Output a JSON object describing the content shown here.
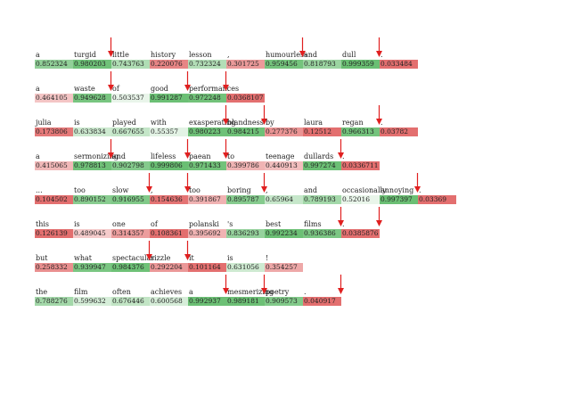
{
  "rows": [
    {
      "tokens": [
        {
          "word": "a",
          "score": "0.852324",
          "val": 0.852324,
          "pol": "pos",
          "arrow": false
        },
        {
          "word": "turgid",
          "score": "0.980203",
          "val": 0.980203,
          "pol": "pos",
          "arrow": true
        },
        {
          "word": "little",
          "score": "0.743763",
          "val": 0.743763,
          "pol": "pos",
          "arrow": false
        },
        {
          "word": "history",
          "score": "0.220076",
          "val": 0.220076,
          "pol": "neg",
          "arrow": false
        },
        {
          "word": "lesson",
          "score": "0.732324",
          "val": 0.732324,
          "pol": "pos",
          "arrow": false
        },
        {
          "word": ",",
          "score": "0.301725",
          "val": 0.301725,
          "pol": "neg",
          "arrow": false
        },
        {
          "word": "humourless",
          "score": "0.959456",
          "val": 0.959456,
          "pol": "pos",
          "arrow": true
        },
        {
          "word": "and",
          "score": "0.818793",
          "val": 0.818793,
          "pol": "pos",
          "arrow": false
        },
        {
          "word": "dull",
          "score": "0.999359",
          "val": 0.999359,
          "pol": "pos",
          "arrow": true
        },
        {
          "word": ".",
          "score": "0.033484",
          "val": 0.966516,
          "pol": "neg",
          "arrow": false
        }
      ]
    },
    {
      "tokens": [
        {
          "word": "a",
          "score": "0.464105",
          "val": 0.464105,
          "pol": "neg",
          "arrow": false
        },
        {
          "word": "waste",
          "score": "0.949628",
          "val": 0.949628,
          "pol": "pos",
          "arrow": true
        },
        {
          "word": "of",
          "score": "0.503537",
          "val": 0.503537,
          "pol": "pos",
          "arrow": false
        },
        {
          "word": "good",
          "score": "0.991287",
          "val": 0.991287,
          "pol": "pos",
          "arrow": true
        },
        {
          "word": "performances",
          "score": "0.972248",
          "val": 0.972248,
          "pol": "pos",
          "arrow": true
        },
        {
          "word": ".",
          "score": "0.0368107",
          "val": 0.9631893,
          "pol": "neg",
          "arrow": false
        }
      ]
    },
    {
      "tokens": [
        {
          "word": "julia",
          "score": "0.173806",
          "val": 0.173806,
          "pol": "neg",
          "arrow": false
        },
        {
          "word": "is",
          "score": "0.633834",
          "val": 0.633834,
          "pol": "pos",
          "arrow": false
        },
        {
          "word": "played",
          "score": "0.667655",
          "val": 0.667655,
          "pol": "pos",
          "arrow": false
        },
        {
          "word": "with",
          "score": "0.55357",
          "val": 0.55357,
          "pol": "pos",
          "arrow": false
        },
        {
          "word": "exasperating",
          "score": "0.980223",
          "val": 0.980223,
          "pol": "pos",
          "arrow": true
        },
        {
          "word": "blandness",
          "score": "0.984215",
          "val": 0.984215,
          "pol": "pos",
          "arrow": true
        },
        {
          "word": "by",
          "score": "0.277376",
          "val": 0.277376,
          "pol": "neg",
          "arrow": false
        },
        {
          "word": "laura",
          "score": "0.12512",
          "val": 0.12512,
          "pol": "neg",
          "arrow": false
        },
        {
          "word": "regan",
          "score": "0.966313",
          "val": 0.966313,
          "pol": "pos",
          "arrow": true
        },
        {
          "word": ".",
          "score": "0.03782",
          "val": 0.96218,
          "pol": "neg",
          "arrow": false
        }
      ]
    },
    {
      "tokens": [
        {
          "word": "a",
          "score": "0.415065",
          "val": 0.415065,
          "pol": "neg",
          "arrow": false
        },
        {
          "word": "sermonizing",
          "score": "0.978813",
          "val": 0.978813,
          "pol": "pos",
          "arrow": true
        },
        {
          "word": "and",
          "score": "0.902798",
          "val": 0.902798,
          "pol": "pos",
          "arrow": false
        },
        {
          "word": "lifeless",
          "score": "0.999806",
          "val": 0.999806,
          "pol": "pos",
          "arrow": true
        },
        {
          "word": "paean",
          "score": "0.971433",
          "val": 0.971433,
          "pol": "pos",
          "arrow": true
        },
        {
          "word": "to",
          "score": "0.399786",
          "val": 0.399786,
          "pol": "neg",
          "arrow": false
        },
        {
          "word": "teenage",
          "score": "0.440913",
          "val": 0.440913,
          "pol": "neg",
          "arrow": false
        },
        {
          "word": "dullards",
          "score": "0.997274",
          "val": 0.997274,
          "pol": "pos",
          "arrow": true
        },
        {
          "word": ".",
          "score": "0.0336711",
          "val": 0.9663289,
          "pol": "neg",
          "arrow": false
        }
      ]
    },
    {
      "tokens": [
        {
          "word": "...",
          "score": "0.104502",
          "val": 0.104502,
          "pol": "neg",
          "arrow": false
        },
        {
          "word": "too",
          "score": "0.890152",
          "val": 0.890152,
          "pol": "pos",
          "arrow": false
        },
        {
          "word": "slow",
          "score": "0.916955",
          "val": 0.916955,
          "pol": "pos",
          "arrow": true
        },
        {
          "word": ",",
          "score": "0.154636",
          "val": 0.154636,
          "pol": "neg",
          "arrow": true
        },
        {
          "word": "too",
          "score": "0.391867",
          "val": 0.391867,
          "pol": "neg",
          "arrow": false
        },
        {
          "word": "boring",
          "score": "0.895787",
          "val": 0.895787,
          "pol": "pos",
          "arrow": true
        },
        {
          "word": ",",
          "score": "0.65964",
          "val": 0.65964,
          "pol": "pos",
          "arrow": false
        },
        {
          "word": "and",
          "score": "0.789193",
          "val": 0.789193,
          "pol": "pos",
          "arrow": false
        },
        {
          "word": "occasionally",
          "score": "0.52016",
          "val": 0.52016,
          "pol": "pos",
          "arrow": false
        },
        {
          "word": "annoying",
          "score": "0.997397",
          "val": 0.997397,
          "pol": "pos",
          "arrow": true
        },
        {
          "word": ".",
          "score": "0.03369",
          "val": 0.96631,
          "pol": "neg",
          "arrow": false
        }
      ]
    },
    {
      "tokens": [
        {
          "word": "this",
          "score": "0.126139",
          "val": 0.126139,
          "pol": "neg",
          "arrow": false
        },
        {
          "word": "is",
          "score": "0.489045",
          "val": 0.489045,
          "pol": "neg",
          "arrow": false
        },
        {
          "word": "one",
          "score": "0.314357",
          "val": 0.314357,
          "pol": "neg",
          "arrow": false
        },
        {
          "word": "of",
          "score": "0.108361",
          "val": 0.108361,
          "pol": "neg",
          "arrow": false
        },
        {
          "word": "polanski",
          "score": "0.395692",
          "val": 0.395692,
          "pol": "neg",
          "arrow": false
        },
        {
          "word": "'s",
          "score": "0.836293",
          "val": 0.836293,
          "pol": "pos",
          "arrow": false
        },
        {
          "word": "best",
          "score": "0.992234",
          "val": 0.992234,
          "pol": "pos",
          "arrow": false
        },
        {
          "word": "films",
          "score": "0.936386",
          "val": 0.936386,
          "pol": "pos",
          "arrow": true
        },
        {
          "word": ".",
          "score": "0.0385876",
          "val": 0.9614124,
          "pol": "neg",
          "arrow": true
        }
      ]
    },
    {
      "tokens": [
        {
          "word": "but",
          "score": "0.258332",
          "val": 0.258332,
          "pol": "neg",
          "arrow": false
        },
        {
          "word": "what",
          "score": "0.939947",
          "val": 0.939947,
          "pol": "pos",
          "arrow": false
        },
        {
          "word": "spectacular",
          "score": "0.984376",
          "val": 0.984376,
          "pol": "pos",
          "arrow": true
        },
        {
          "word": "sizzle",
          "score": "0.292204",
          "val": 0.292204,
          "pol": "neg",
          "arrow": true
        },
        {
          "word": "it",
          "score": "0.101164",
          "val": 0.101164,
          "pol": "neg",
          "arrow": false
        },
        {
          "word": "is",
          "score": "0.631056",
          "val": 0.631056,
          "pol": "pos",
          "arrow": false
        },
        {
          "word": "!",
          "score": "0.354257",
          "val": 0.354257,
          "pol": "neg",
          "arrow": false
        }
      ]
    },
    {
      "tokens": [
        {
          "word": "the",
          "score": "0.788276",
          "val": 0.788276,
          "pol": "pos",
          "arrow": false
        },
        {
          "word": "film",
          "score": "0.599632",
          "val": 0.599632,
          "pol": "pos",
          "arrow": false
        },
        {
          "word": "often",
          "score": "0.676446",
          "val": 0.676446,
          "pol": "pos",
          "arrow": false
        },
        {
          "word": "achieves",
          "score": "0.600568",
          "val": 0.600568,
          "pol": "pos",
          "arrow": false
        },
        {
          "word": "a",
          "score": "0.992937",
          "val": 0.992937,
          "pol": "pos",
          "arrow": true
        },
        {
          "word": "mesmerizing",
          "score": "0.989181",
          "val": 0.989181,
          "pol": "pos",
          "arrow": true
        },
        {
          "word": "poetry",
          "score": "0.909573",
          "val": 0.909573,
          "pol": "pos",
          "arrow": false
        },
        {
          "word": ".",
          "score": "0.040917",
          "val": 0.959083,
          "pol": "neg",
          "arrow": true
        }
      ]
    }
  ],
  "colors": {
    "positive": "#6abf73",
    "negative": "#e36f6f",
    "arrow": "#e02020",
    "text": "#222222"
  }
}
